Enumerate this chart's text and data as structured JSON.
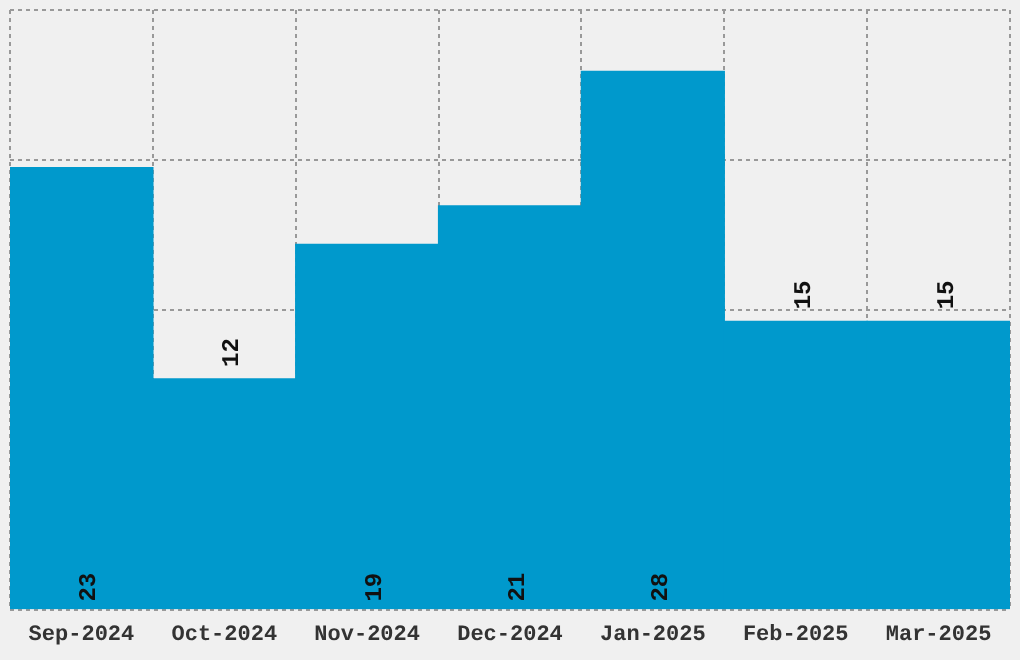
{
  "chart_data": {
    "type": "bar",
    "categories": [
      "Sep-2024",
      "Oct-2024",
      "Nov-2024",
      "Dec-2024",
      "Jan-2025",
      "Feb-2025",
      "Mar-2025"
    ],
    "values": [
      23,
      12,
      19,
      21,
      28,
      15,
      15
    ],
    "color": "#0099cc",
    "ylim": [
      0,
      31.2
    ],
    "tick_labels": "x",
    "grid": true,
    "data_labels": true
  }
}
